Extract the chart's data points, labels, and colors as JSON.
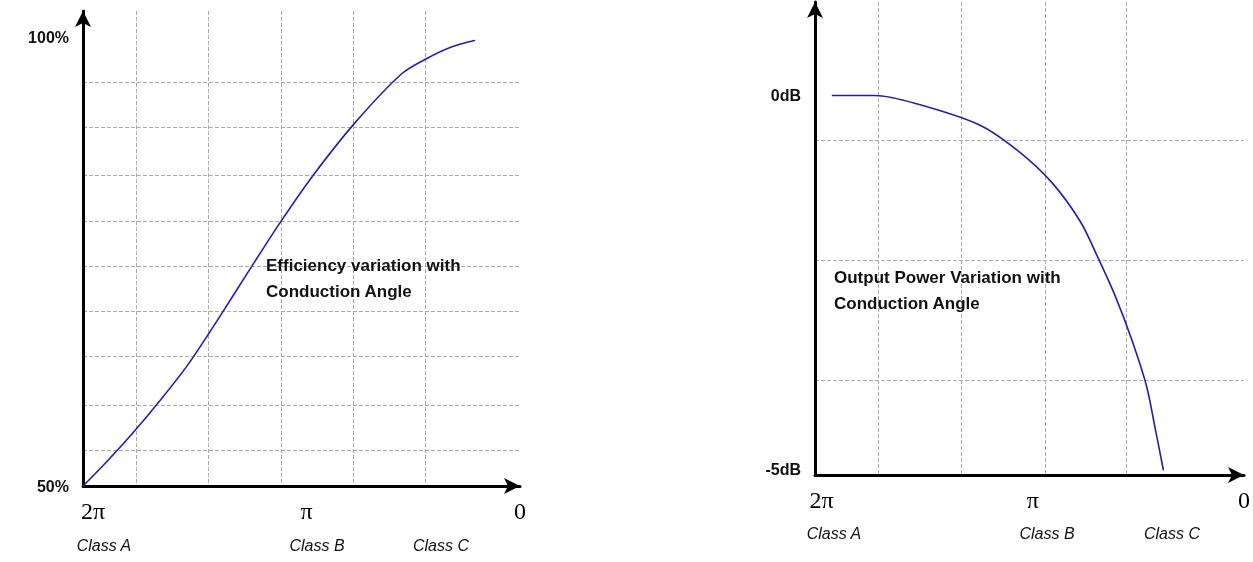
{
  "chart_data": [
    {
      "type": "line",
      "title": "Efficiency variation with Conduction Angle",
      "x": [
        6.43,
        6.12,
        5.71,
        5.29,
        4.88,
        4.46,
        3.99,
        3.52,
        3.05,
        2.42,
        1.74,
        1.37,
        1.0,
        0.67
      ],
      "series": [
        {
          "color": "#2020b0",
          "values": [
            50,
            52.4,
            55.8,
            59.6,
            63.6,
            68.4,
            74.0,
            79.5,
            84.6,
            90.6,
            96.0,
            97.7,
            99.0,
            99.7
          ]
        }
      ],
      "annotations": [
        "Class A",
        "Class B",
        "Class C"
      ],
      "xlim": [
        6.43,
        0
      ],
      "xticks": [
        {
          "value": 6.2832,
          "label": "2π"
        },
        {
          "value": 5.65,
          "label": null
        },
        {
          "value": 4.59,
          "label": null
        },
        {
          "value": 3.51,
          "label": null
        },
        {
          "value": 3.1416,
          "label": "π"
        },
        {
          "value": 2.45,
          "label": null
        },
        {
          "value": 1.4,
          "label": null
        },
        {
          "value": 0,
          "label": "0"
        }
      ],
      "ylim": [
        50,
        103
      ],
      "yticks": [
        {
          "value": 50,
          "label": "50%"
        },
        {
          "value": 54,
          "label": null
        },
        {
          "value": 59,
          "label": null
        },
        {
          "value": 64.5,
          "label": null
        },
        {
          "value": 69.5,
          "label": null
        },
        {
          "value": 74.5,
          "label": null
        },
        {
          "value": 79.5,
          "label": null
        },
        {
          "value": 84.7,
          "label": null
        },
        {
          "value": 90,
          "label": null
        },
        {
          "value": 95,
          "label": null
        },
        {
          "value": 100,
          "label": "100%"
        }
      ],
      "grid": true
    },
    {
      "type": "line",
      "title": "Output Power Variation with Conduction Angle",
      "x": [
        6.12,
        5.49,
        4.87,
        3.94,
        3.36,
        2.85,
        2.43,
        2.17,
        1.91,
        1.67,
        1.45,
        1.32,
        1.2
      ],
      "series": [
        {
          "color": "#2020b0",
          "values": [
            0,
            0,
            -0.11,
            -0.39,
            -0.74,
            -1.17,
            -1.69,
            -2.17,
            -2.69,
            -3.26,
            -3.88,
            -4.45,
            -5.0
          ]
        }
      ],
      "annotations": [
        "Class A",
        "Class B",
        "Class C"
      ],
      "xlim": [
        6.38,
        0
      ],
      "xticks": [
        {
          "value": 6.2832,
          "label": "2π"
        },
        {
          "value": 5.44,
          "label": null
        },
        {
          "value": 4.21,
          "label": null
        },
        {
          "value": 3.1416,
          "label": "π"
        },
        {
          "value": 2.95,
          "label": null
        },
        {
          "value": 1.75,
          "label": null
        },
        {
          "value": 0,
          "label": "0"
        }
      ],
      "ylim": [
        -5.07,
        1.25
      ],
      "yticks": [
        {
          "value": -5,
          "label": "-5dB"
        },
        {
          "value": -3.8,
          "label": null
        },
        {
          "value": -2.2,
          "label": null
        },
        {
          "value": -0.6,
          "label": null
        },
        {
          "value": 0,
          "label": "0dB"
        }
      ],
      "grid": true
    }
  ]
}
